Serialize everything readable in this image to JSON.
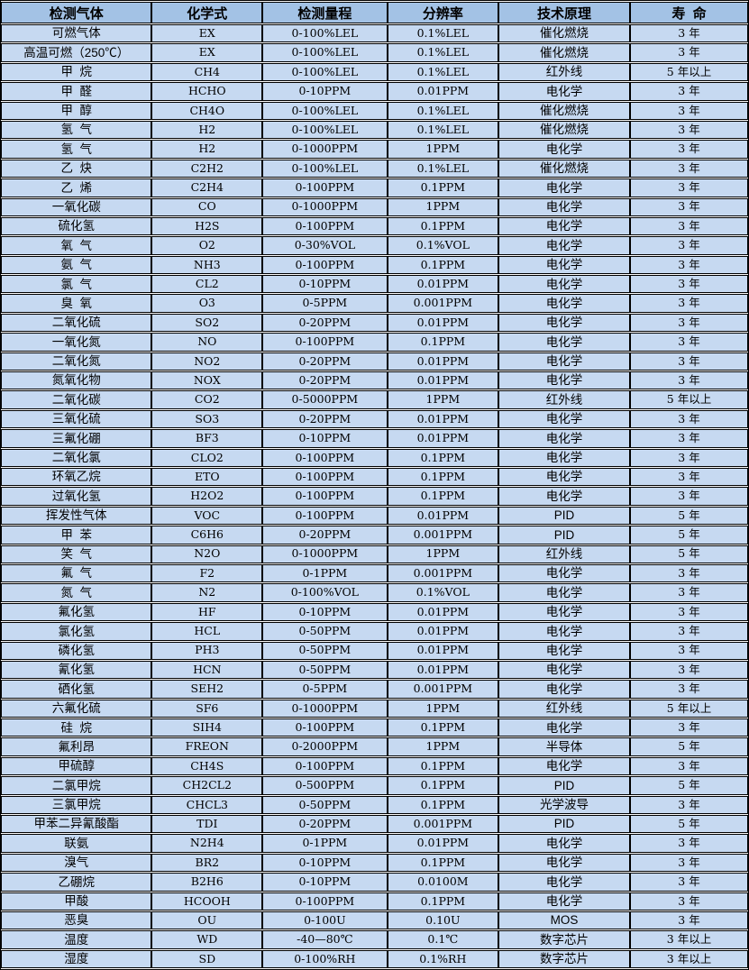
{
  "colors": {
    "header_bg": "#a3c2e5",
    "row_bg": "#c6d9f1",
    "border": "#000000",
    "gap": "#ffffff",
    "text": "#000000"
  },
  "chart_data": {
    "type": "table",
    "columns": [
      "检测气体",
      "化学式",
      "检测量程",
      "分辨率",
      "技术原理",
      "寿  命"
    ],
    "rows": [
      [
        "可燃气体",
        "EX",
        "0-100%LEL",
        "0.1%LEL",
        "催化燃烧",
        "3 年"
      ],
      [
        "高温可燃（250℃）",
        "EX",
        "0-100%LEL",
        "0.1%LEL",
        "催化燃烧",
        "3 年"
      ],
      [
        "甲  烷",
        "CH4",
        "0-100%LEL",
        "0.1%LEL",
        "红外线",
        "5 年以上"
      ],
      [
        "甲  醛",
        "HCHO",
        "0-10PPM",
        "0.01PPM",
        "电化学",
        "3 年"
      ],
      [
        "甲  醇",
        "CH4O",
        "0-100%LEL",
        "0.1%LEL",
        "催化燃烧",
        "3 年"
      ],
      [
        "氢  气",
        "H2",
        "0-100%LEL",
        "0.1%LEL",
        "催化燃烧",
        "3 年"
      ],
      [
        "氢  气",
        "H2",
        "0-1000PPM",
        "1PPM",
        "电化学",
        "3 年"
      ],
      [
        "乙  炔",
        "C2H2",
        "0-100%LEL",
        "0.1%LEL",
        "催化燃烧",
        "3 年"
      ],
      [
        "乙  烯",
        "C2H4",
        "0-100PPM",
        "0.1PPM",
        "电化学",
        "3 年"
      ],
      [
        "一氧化碳",
        "CO",
        "0-1000PPM",
        "1PPM",
        "电化学",
        "3 年"
      ],
      [
        "硫化氢",
        "H2S",
        "0-100PPM",
        "0.1PPM",
        "电化学",
        "3 年"
      ],
      [
        "氧  气",
        "O2",
        "0-30%VOL",
        "0.1%VOL",
        "电化学",
        "3 年"
      ],
      [
        "氨  气",
        "NH3",
        "0-100PPM",
        "0.1PPM",
        "电化学",
        "3 年"
      ],
      [
        "氯  气",
        "CL2",
        "0-10PPM",
        "0.01PPM",
        "电化学",
        "3 年"
      ],
      [
        "臭  氧",
        "O3",
        "0-5PPM",
        "0.001PPM",
        "电化学",
        "3 年"
      ],
      [
        "二氧化硫",
        "SO2",
        "0-20PPM",
        "0.01PPM",
        "电化学",
        "3 年"
      ],
      [
        "一氧化氮",
        "NO",
        "0-100PPM",
        "0.1PPM",
        "电化学",
        "3 年"
      ],
      [
        "二氧化氮",
        "NO2",
        "0-20PPM",
        "0.01PPM",
        "电化学",
        "3 年"
      ],
      [
        "氮氧化物",
        "NOX",
        "0-20PPM",
        "0.01PPM",
        "电化学",
        "3 年"
      ],
      [
        "二氧化碳",
        "CO2",
        "0-5000PPM",
        "1PPM",
        "红外线",
        "5 年以上"
      ],
      [
        "三氧化硫",
        "SO3",
        "0-20PPM",
        "0.01PPM",
        "电化学",
        "3 年"
      ],
      [
        "三氟化硼",
        "BF3",
        "0-10PPM",
        "0.01PPM",
        "电化学",
        "3 年"
      ],
      [
        "二氧化氯",
        "CLO2",
        "0-100PPM",
        "0.1PPM",
        "电化学",
        "3 年"
      ],
      [
        "环氧乙烷",
        "ETO",
        "0-100PPM",
        "0.1PPM",
        "电化学",
        "3 年"
      ],
      [
        "过氧化氢",
        "H2O2",
        "0-100PPM",
        "0.1PPM",
        "电化学",
        "3 年"
      ],
      [
        "挥发性气体",
        "VOC",
        "0-100PPM",
        "0.01PPM",
        "PID",
        "5 年"
      ],
      [
        "甲  苯",
        "C6H6",
        "0-20PPM",
        "0.001PPM",
        "PID",
        "5 年"
      ],
      [
        "笑  气",
        "N2O",
        "0-1000PPM",
        "1PPM",
        "红外线",
        "5 年"
      ],
      [
        "氟  气",
        "F2",
        "0-1PPM",
        "0.001PPM",
        "电化学",
        "3 年"
      ],
      [
        "氮  气",
        "N2",
        "0-100%VOL",
        "0.1%VOL",
        "电化学",
        "3 年"
      ],
      [
        "氟化氢",
        "HF",
        "0-10PPM",
        "0.01PPM",
        "电化学",
        "3 年"
      ],
      [
        "氯化氢",
        "HCL",
        "0-50PPM",
        "0.01PPM",
        "电化学",
        "3 年"
      ],
      [
        "磷化氢",
        "PH3",
        "0-50PPM",
        "0.01PPM",
        "电化学",
        "3 年"
      ],
      [
        "氰化氢",
        "HCN",
        "0-50PPM",
        "0.01PPM",
        "电化学",
        "3 年"
      ],
      [
        "硒化氢",
        "SEH2",
        "0-5PPM",
        "0.001PPM",
        "电化学",
        "3 年"
      ],
      [
        "六氟化硫",
        "SF6",
        "0-1000PPM",
        "1PPM",
        "红外线",
        "5 年以上"
      ],
      [
        "硅  烷",
        "SIH4",
        "0-100PPM",
        "0.1PPM",
        "电化学",
        "3 年"
      ],
      [
        "氟利昂",
        "FREON",
        "0-2000PPM",
        "1PPM",
        "半导体",
        "5 年"
      ],
      [
        "甲硫醇",
        "CH4S",
        "0-100PPM",
        "0.1PPM",
        "电化学",
        "3 年"
      ],
      [
        "二氯甲烷",
        "CH2CL2",
        "0-500PPM",
        "0.1PPM",
        "PID",
        "5 年"
      ],
      [
        "三氯甲烷",
        "CHCL3",
        "0-50PPM",
        "0.1PPM",
        "光学波导",
        "3 年"
      ],
      [
        "甲苯二异氰酸酯",
        "TDI",
        "0-20PPM",
        "0.001PPM",
        "PID",
        "5 年"
      ],
      [
        "联氨",
        "N2H4",
        "0-1PPM",
        "0.01PPM",
        "电化学",
        "3 年"
      ],
      [
        "溴气",
        "BR2",
        "0-10PPM",
        "0.1PPM",
        "电化学",
        "3 年"
      ],
      [
        "乙硼烷",
        "B2H6",
        "0-10PPM",
        "0.0100M",
        "电化学",
        "3 年"
      ],
      [
        "甲酸",
        "HCOOH",
        "0-100PPM",
        "0.1PPM",
        "电化学",
        "3 年"
      ],
      [
        "恶臭",
        "OU",
        "0-100U",
        "0.10U",
        "MOS",
        "3 年"
      ],
      [
        "温度",
        "WD",
        "-40—80℃",
        "0.1℃",
        "数字芯片",
        "3 年以上"
      ],
      [
        "湿度",
        "SD",
        "0-100%RH",
        "0.1%RH",
        "数字芯片",
        "3 年以上"
      ]
    ]
  }
}
